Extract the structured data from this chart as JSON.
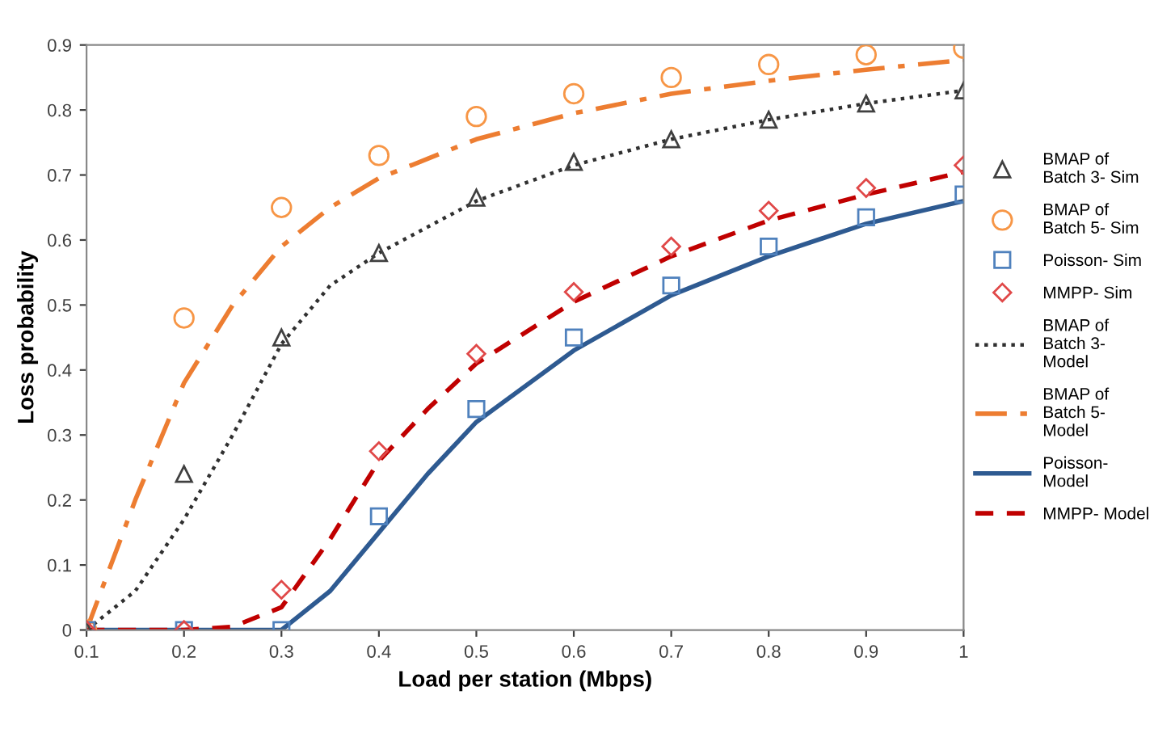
{
  "chart_data": {
    "type": "line",
    "xlabel": "Load per station (Mbps)",
    "ylabel": "Loss probability",
    "xlim": [
      0.1,
      1
    ],
    "xticks": [
      0.1,
      0.2,
      0.3,
      0.4,
      0.5,
      0.6,
      0.7,
      0.8,
      0.9,
      1
    ],
    "ylim": [
      0,
      0.9
    ],
    "yticks": [
      0,
      0.1,
      0.2,
      0.3,
      0.4,
      0.5,
      0.6,
      0.7,
      0.8,
      0.9
    ],
    "grid": false,
    "legend": "right",
    "series": [
      {
        "name": "BMAP of Batch 3- Sim",
        "type": "scatter",
        "marker": "triangle",
        "color": "#404040",
        "x": [
          0.1,
          0.2,
          0.3,
          0.4,
          0.5,
          0.6,
          0.7,
          0.8,
          0.9,
          1
        ],
        "values": [
          0,
          0.24,
          0.45,
          0.58,
          0.665,
          0.72,
          0.755,
          0.785,
          0.81,
          0.83
        ]
      },
      {
        "name": "BMAP of Batch 5- Sim",
        "type": "scatter",
        "marker": "circle",
        "color": "#f79646",
        "x": [
          0.1,
          0.2,
          0.3,
          0.4,
          0.5,
          0.6,
          0.7,
          0.8,
          0.9,
          1
        ],
        "values": [
          0,
          0.48,
          0.65,
          0.73,
          0.79,
          0.825,
          0.85,
          0.87,
          0.885,
          0.895
        ]
      },
      {
        "name": "Poisson- Sim",
        "type": "scatter",
        "marker": "square",
        "color": "#4f81bd",
        "x": [
          0.1,
          0.2,
          0.3,
          0.4,
          0.5,
          0.6,
          0.7,
          0.8,
          0.9,
          1
        ],
        "values": [
          0,
          0,
          0,
          0.175,
          0.34,
          0.45,
          0.53,
          0.59,
          0.635,
          0.67
        ]
      },
      {
        "name": "MMPP- Sim",
        "type": "scatter",
        "marker": "diamond",
        "color": "#e04848",
        "x": [
          0.1,
          0.2,
          0.3,
          0.4,
          0.5,
          0.6,
          0.7,
          0.8,
          0.9,
          1
        ],
        "values": [
          0,
          0,
          0.062,
          0.275,
          0.425,
          0.52,
          0.59,
          0.645,
          0.68,
          0.715
        ]
      },
      {
        "name": "BMAP of Batch 3- Model",
        "line_style": "dotted",
        "color": "#303030",
        "x": [
          0.1,
          0.15,
          0.2,
          0.25,
          0.3,
          0.35,
          0.4,
          0.5,
          0.6,
          0.7,
          0.8,
          0.9,
          1
        ],
        "values": [
          0,
          0.06,
          0.17,
          0.3,
          0.44,
          0.53,
          0.58,
          0.66,
          0.715,
          0.755,
          0.785,
          0.81,
          0.83
        ]
      },
      {
        "name": "BMAP of Batch 5- Model",
        "line_style": "dashdot",
        "color": "#ed7d31",
        "x": [
          0.1,
          0.15,
          0.2,
          0.25,
          0.3,
          0.35,
          0.4,
          0.5,
          0.6,
          0.7,
          0.8,
          0.9,
          1
        ],
        "values": [
          0,
          0.2,
          0.38,
          0.5,
          0.59,
          0.65,
          0.695,
          0.755,
          0.795,
          0.825,
          0.845,
          0.862,
          0.877
        ]
      },
      {
        "name": "Poisson- Model",
        "line_style": "solid",
        "color": "#2e5a91",
        "x": [
          0.1,
          0.2,
          0.3,
          0.35,
          0.4,
          0.45,
          0.5,
          0.6,
          0.7,
          0.8,
          0.9,
          1
        ],
        "values": [
          0,
          0,
          0,
          0.06,
          0.15,
          0.24,
          0.32,
          0.43,
          0.515,
          0.575,
          0.625,
          0.66
        ]
      },
      {
        "name": "MMPP- Model",
        "line_style": "dashed",
        "color": "#c00000",
        "x": [
          0.1,
          0.2,
          0.25,
          0.3,
          0.35,
          0.4,
          0.45,
          0.5,
          0.6,
          0.7,
          0.8,
          0.9,
          1
        ],
        "values": [
          0,
          0,
          0.005,
          0.035,
          0.14,
          0.26,
          0.34,
          0.41,
          0.505,
          0.575,
          0.63,
          0.67,
          0.705
        ]
      }
    ]
  }
}
